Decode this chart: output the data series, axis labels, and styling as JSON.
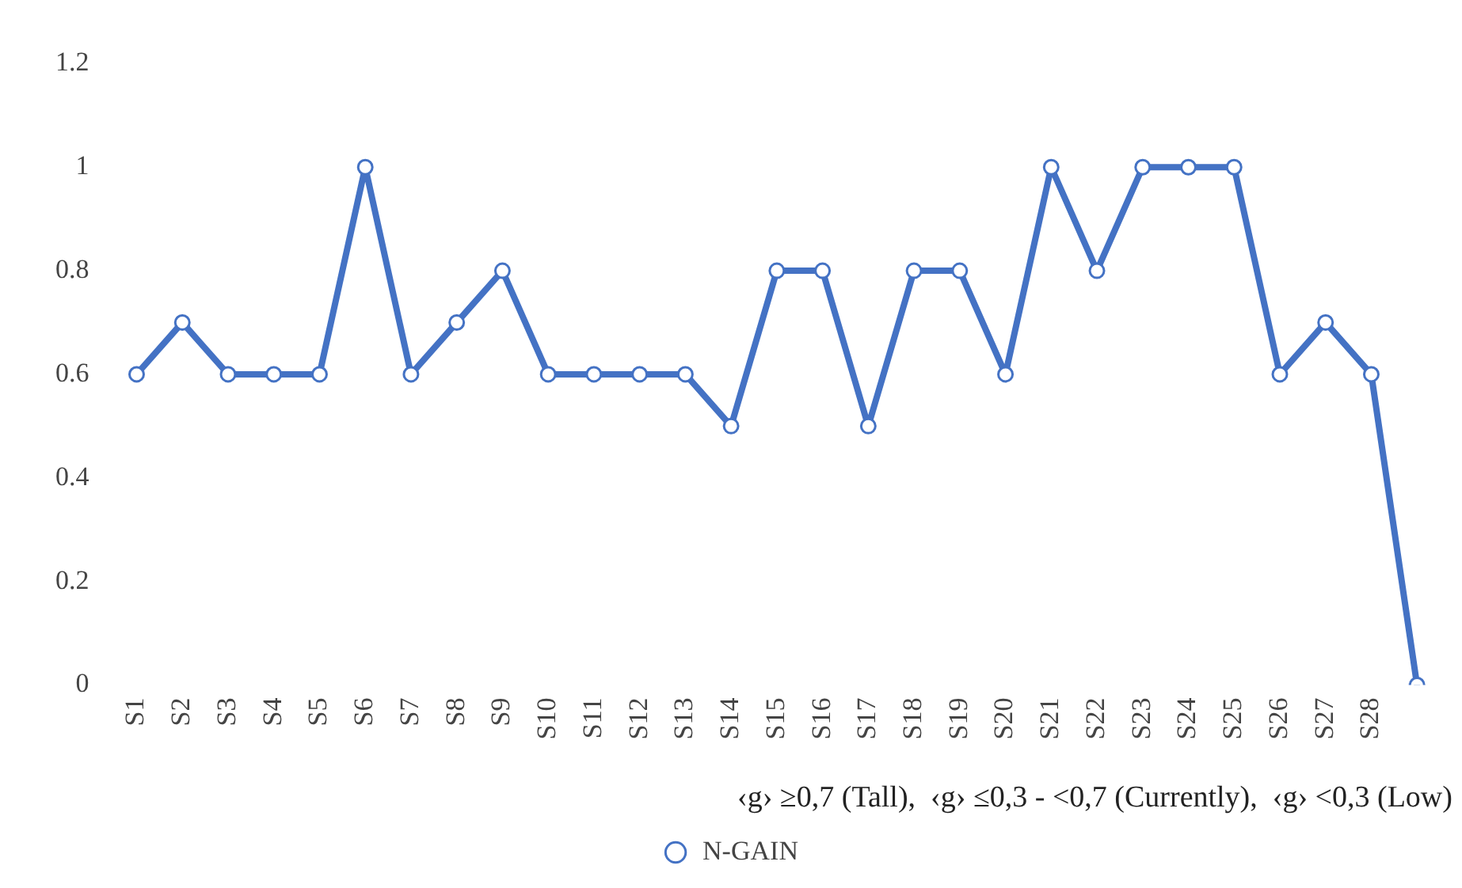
{
  "chart_data": {
    "type": "line",
    "categories": [
      "S1",
      "S2",
      "S3",
      "S4",
      "S5",
      "S6",
      "S7",
      "S8",
      "S9",
      "S10",
      "S11",
      "S12",
      "S13",
      "S14",
      "S15",
      "S16",
      "S17",
      "S18",
      "S19",
      "S20",
      "S21",
      "S22",
      "S23",
      "S24",
      "S25",
      "S26",
      "S27",
      "S28",
      null
    ],
    "series": [
      {
        "name": "N-GAIN",
        "color": "#4472c4",
        "values": [
          0.6,
          0.7,
          0.6,
          0.6,
          0.6,
          1,
          0.6,
          0.7,
          0.8,
          0.6,
          0.6,
          0.6,
          0.6,
          0.5,
          0.8,
          0.8,
          0.5,
          0.8,
          0.8,
          0.6,
          1,
          0.8,
          1,
          1,
          1,
          0.6,
          0.7,
          0.6,
          0
        ]
      }
    ],
    "ylim": [
      0,
      1.2
    ],
    "yticks": [
      0,
      0.2,
      0.4,
      0.6,
      0.8,
      1,
      1.2
    ],
    "annotations": [
      "‹g› ≥0,7 (Tall),  ‹g› ≤0,3 - <0,7 (Currently),  ‹g› <0,3 (Low)"
    ],
    "grid": false,
    "legend": "bottom",
    "marker": "circle",
    "line_style": "solid"
  }
}
